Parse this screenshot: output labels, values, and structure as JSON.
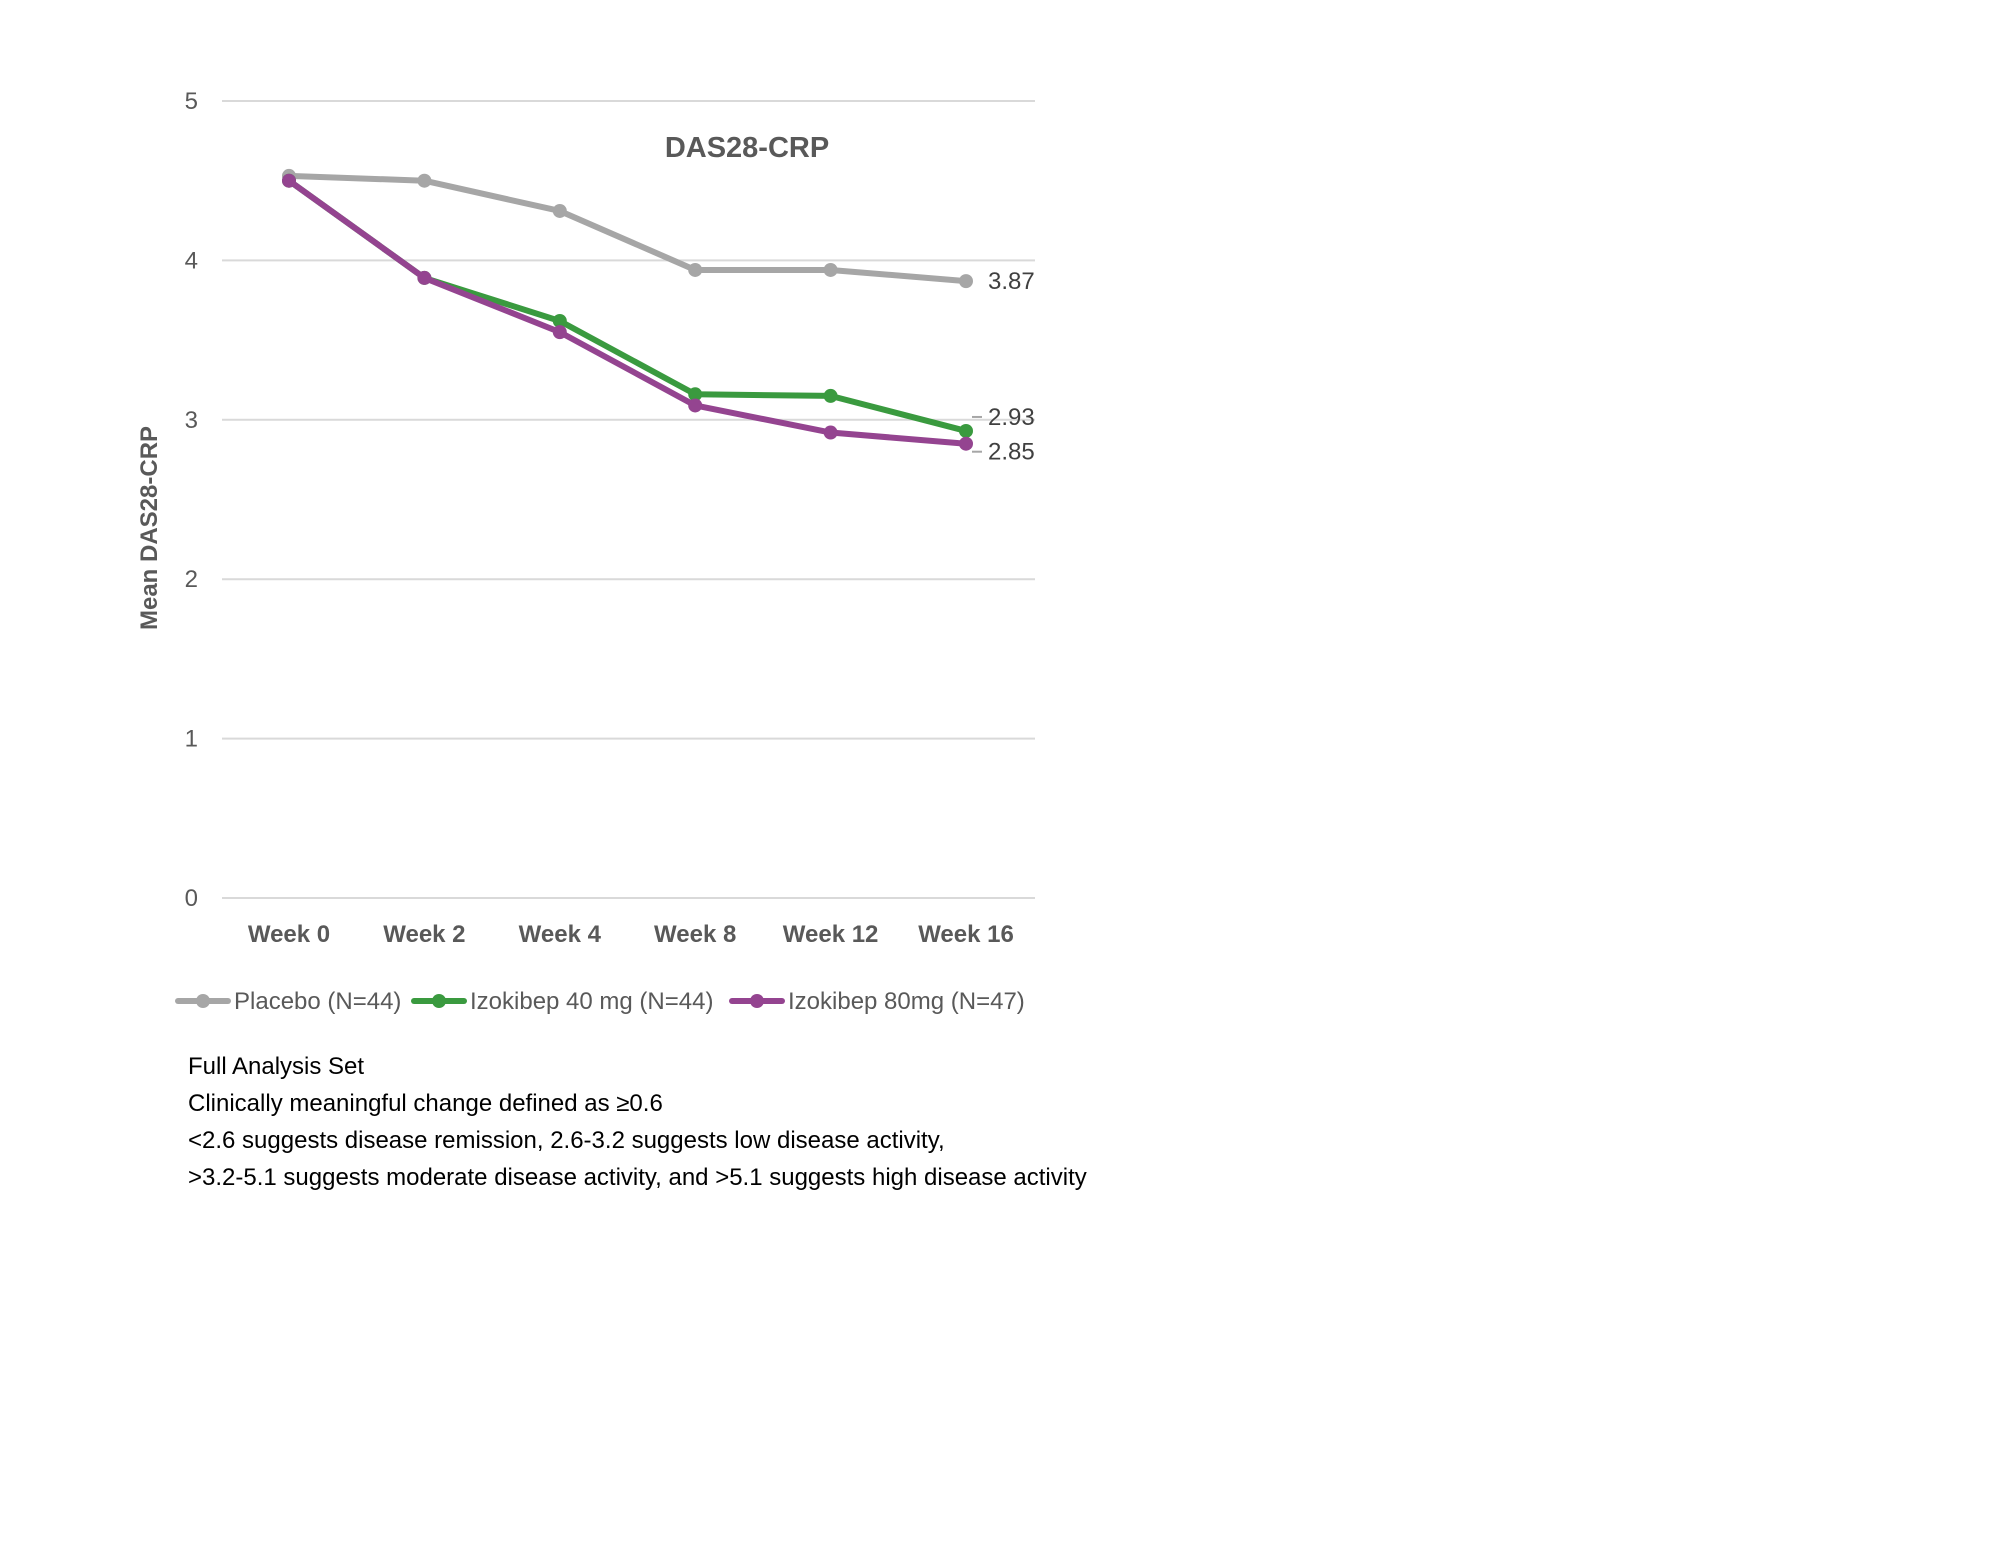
{
  "chart_data": {
    "type": "line",
    "title": "DAS28-CRP",
    "xlabel": "",
    "ylabel": "Mean DAS28-CRP",
    "ylim": [
      0,
      5
    ],
    "yticks": [
      0,
      1,
      2,
      3,
      4,
      5
    ],
    "grid": true,
    "legend_position": "bottom",
    "categories": [
      "Week 0",
      "Week 2",
      "Week 4",
      "Week 8",
      "Week 12",
      "Week 16"
    ],
    "series": [
      {
        "name": "Placebo (N=44)",
        "color": "#a6a6a6",
        "values": [
          4.53,
          4.5,
          4.31,
          3.94,
          3.94,
          3.87
        ],
        "end_label": "3.87"
      },
      {
        "name": "Izokibep 40 mg (N=44)",
        "color": "#3a9a3f",
        "values": [
          4.5,
          3.89,
          3.62,
          3.16,
          3.15,
          2.93
        ],
        "end_label": "2.93"
      },
      {
        "name": "Izokibep 80mg (N=47)",
        "color": "#944490",
        "values": [
          4.5,
          3.89,
          3.55,
          3.09,
          2.92,
          2.85
        ],
        "end_label": "2.85"
      }
    ]
  },
  "footnotes": [
    "Full Analysis Set",
    "Clinically meaningful change defined as ≥0.6",
    " <2.6 suggests disease remission, 2.6-3.2 suggests low disease activity,",
    " >3.2-5.1 suggests moderate disease activity, and >5.1 suggests high disease activity"
  ]
}
